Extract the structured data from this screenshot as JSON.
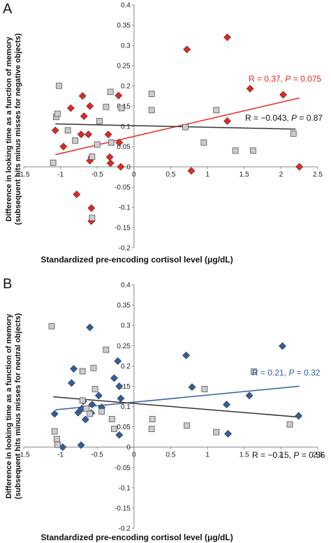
{
  "chart_data": [
    {
      "panel": "A",
      "type": "scatter",
      "xlabel": "Standardized pre-encoding cortisol level (μg/dL)",
      "ylabel": [
        "Difference in looking time as a function of memory",
        "(subsequent hits minus misses for negative objects)"
      ],
      "xlim": [
        -1.5,
        2.5
      ],
      "ylim": [
        -0.2,
        0.4
      ],
      "x_ticks": [
        "-1.5",
        "-1",
        "-0.5",
        "0",
        "0.5",
        "1",
        "1.5",
        "2",
        "2.5"
      ],
      "y_ticks": [
        "0.4",
        "0.35",
        "0.3",
        "0.25",
        "0.2",
        "0.15",
        "0.1",
        "0.05",
        "0",
        "-0.05",
        "-0.1",
        "-0.15",
        "-0.2"
      ],
      "series": [
        {
          "color": "#e8251f",
          "marker": "diamond",
          "points": [
            [
              -1.07,
              0.09
            ],
            [
              -0.96,
              0.05
            ],
            [
              -0.86,
              0.145
            ],
            [
              -0.78,
              -0.068
            ],
            [
              -0.72,
              0.08
            ],
            [
              -0.7,
              0.175
            ],
            [
              -0.68,
              0.125
            ],
            [
              -0.62,
              0.08
            ],
            [
              -0.6,
              0.15
            ],
            [
              -0.58,
              0.024
            ],
            [
              -0.6,
              0.015
            ],
            [
              -0.58,
              -0.102
            ],
            [
              -0.58,
              -0.134
            ],
            [
              -0.35,
              0.08
            ],
            [
              -0.33,
              0.024
            ],
            [
              -0.32,
              0.009
            ],
            [
              -0.21,
              0.176
            ],
            [
              -0.2,
              0.06
            ],
            [
              -0.18,
              0.0
            ],
            [
              0.72,
              0.29
            ],
            [
              0.78,
              -0.01
            ],
            [
              1.27,
              0.32
            ],
            [
              1.27,
              0.113
            ],
            [
              1.58,
              0.193
            ],
            [
              2.03,
              0.178
            ],
            [
              2.25,
              0.0
            ]
          ],
          "fit": [
            [
              -1.07,
              0.03
            ],
            [
              2.25,
              0.17
            ]
          ]
        },
        {
          "color": "#aaaaaa",
          "marker": "square",
          "points": [
            [
              -1.1,
              0.01
            ],
            [
              -1.06,
              0.123
            ],
            [
              -1.04,
              0.131
            ],
            [
              -1.02,
              0.2
            ],
            [
              -0.9,
              0.09
            ],
            [
              -0.8,
              0.065
            ],
            [
              -0.57,
              0.025
            ],
            [
              -0.57,
              -0.126
            ],
            [
              -0.5,
              0.055
            ],
            [
              -0.47,
              0.113
            ],
            [
              -0.38,
              0.148
            ],
            [
              -0.32,
              0.185
            ],
            [
              -0.31,
              0.06
            ],
            [
              -0.17,
              0.145
            ],
            [
              0.24,
              0.18
            ],
            [
              0.24,
              0.14
            ],
            [
              0.7,
              0.098
            ],
            [
              0.95,
              0.06
            ],
            [
              1.12,
              0.14
            ],
            [
              1.38,
              0.04
            ],
            [
              1.62,
              0.04
            ],
            [
              2.17,
              0.082
            ]
          ],
          "fit": [
            [
              -1.07,
              0.106
            ],
            [
              2.2,
              0.093
            ]
          ]
        }
      ],
      "annotations": [
        {
          "label": "R = 0.37, ",
          "p": "P",
          "rest": " = 0.075",
          "color": "#e8251f"
        },
        {
          "label": "R = −0.043, ",
          "p": "P",
          "rest": " = 0.87",
          "color": "#111111"
        }
      ]
    },
    {
      "panel": "B",
      "type": "scatter",
      "xlabel": "Standardized pre-encoding cortisol level (μg/dL)",
      "ylabel": [
        "Difference in looking time as a function of memory",
        "(subsequent hits minus misses for neutral objects)"
      ],
      "xlim": [
        -1.5,
        2.5
      ],
      "ylim": [
        -0.2,
        0.4
      ],
      "x_ticks": [
        "-1.5",
        "-1",
        "-0.5",
        "0",
        "0.5",
        "1",
        "1.5",
        "2",
        "2.5"
      ],
      "y_ticks": [
        "0.4",
        "0.35",
        "0.3",
        "0.25",
        "0.2",
        "0.15",
        "0.1",
        "0.05",
        "0",
        "-0.05",
        "-0.1",
        "-0.15",
        "-0.2"
      ],
      "series": [
        {
          "color": "#2f5f9e",
          "marker": "diamond",
          "points": [
            [
              -1.08,
              0.082
            ],
            [
              -0.97,
              0.0
            ],
            [
              -0.85,
              0.158
            ],
            [
              -0.82,
              0.193
            ],
            [
              -0.76,
              0.085
            ],
            [
              -0.72,
              0.005
            ],
            [
              -0.71,
              0.095
            ],
            [
              -0.69,
              0.113
            ],
            [
              -0.66,
              0.068
            ],
            [
              -0.6,
              0.295
            ],
            [
              -0.58,
              0.084
            ],
            [
              -0.57,
              0.105
            ],
            [
              -0.48,
              0.127
            ],
            [
              -0.44,
              0.098
            ],
            [
              -0.27,
              0.17
            ],
            [
              -0.22,
              0.212
            ],
            [
              -0.2,
              0.15
            ],
            [
              -0.18,
              0.12
            ],
            [
              -0.2,
              0.03
            ],
            [
              0.71,
              0.226
            ],
            [
              0.79,
              0.148
            ],
            [
              1.26,
              0.105
            ],
            [
              1.28,
              0.033
            ],
            [
              1.57,
              0.127
            ],
            [
              2.02,
              0.249
            ],
            [
              2.24,
              0.077
            ]
          ],
          "fit": [
            [
              -1.07,
              0.092
            ],
            [
              2.25,
              0.15
            ]
          ]
        },
        {
          "color": "#aaaaaa",
          "marker": "square",
          "points": [
            [
              -1.12,
              0.298
            ],
            [
              -1.08,
              0.039
            ],
            [
              -1.05,
              0.02
            ],
            [
              -1.04,
              0.006
            ],
            [
              -0.7,
              0.187
            ],
            [
              -0.7,
              0.115
            ],
            [
              -0.65,
              0.095
            ],
            [
              -0.6,
              0.082
            ],
            [
              -0.55,
              0.195
            ],
            [
              -0.53,
              0.143
            ],
            [
              -0.44,
              0.088
            ],
            [
              -0.38,
              0.24
            ],
            [
              -0.3,
              0.069
            ],
            [
              -0.27,
              0.045
            ],
            [
              0.24,
              0.045
            ],
            [
              0.25,
              0.069
            ],
            [
              0.72,
              0.053
            ],
            [
              0.96,
              0.143
            ],
            [
              1.12,
              0.037
            ],
            [
              1.63,
              0.186
            ],
            [
              2.12,
              0.056
            ]
          ],
          "fit": [
            [
              -1.1,
              0.124
            ],
            [
              2.25,
              0.074
            ]
          ]
        }
      ],
      "annotations": [
        {
          "label": "R = 0.21, ",
          "p": "P",
          "rest": " = 0.32",
          "color": "#2f5f9e"
        },
        {
          "label": "R = −0.15, ",
          "p": "P",
          "rest": " = 0.56",
          "color": "#111111"
        }
      ]
    }
  ]
}
